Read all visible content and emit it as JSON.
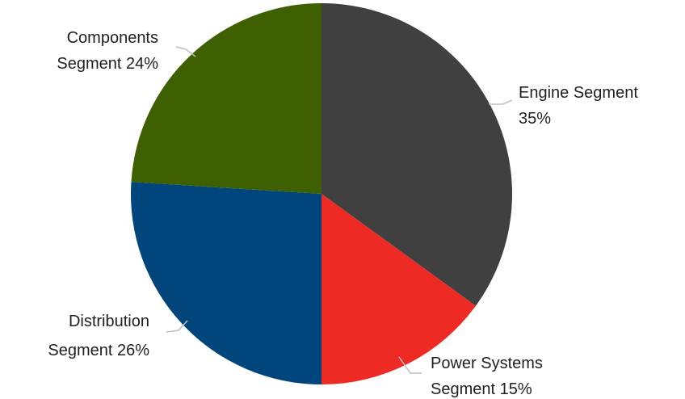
{
  "chart_data": {
    "type": "pie",
    "start_angle_deg": 0,
    "direction": "clockwise",
    "slices": [
      {
        "name": "Engine Segment",
        "value": 35,
        "label_lines": [
          "Engine Segment",
          "35%"
        ],
        "color": "#404040"
      },
      {
        "name": "Power Systems Segment",
        "value": 15,
        "label_lines": [
          "Power Systems",
          "Segment 15%"
        ],
        "color": "#ee2a24"
      },
      {
        "name": "Distribution Segment",
        "value": 26,
        "label_lines": [
          "Distribution",
          "Segment 26%"
        ],
        "color": "#00457c"
      },
      {
        "name": "Components Segment",
        "value": 24,
        "label_lines": [
          "Components",
          "Segment 24%"
        ],
        "color": "#3f6000"
      }
    ]
  }
}
